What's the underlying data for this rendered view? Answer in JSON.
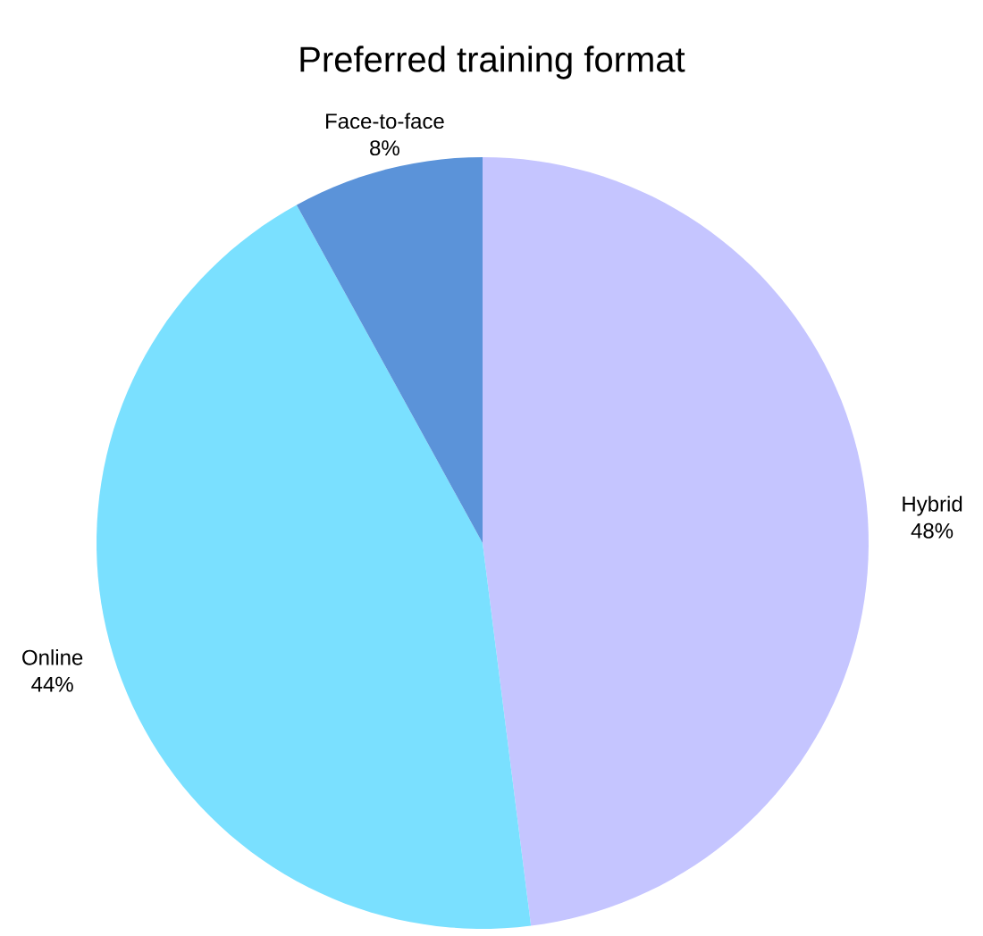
{
  "chart_data": {
    "type": "pie",
    "title": "Preferred training format",
    "categories": [
      "Hybrid",
      "Online",
      "Face-to-face"
    ],
    "values": [
      48,
      44,
      8
    ],
    "value_labels": [
      "48%",
      "44%",
      "8%"
    ],
    "colors": [
      "#c5c5ff",
      "#7ae0ff",
      "#5b93d9"
    ]
  }
}
